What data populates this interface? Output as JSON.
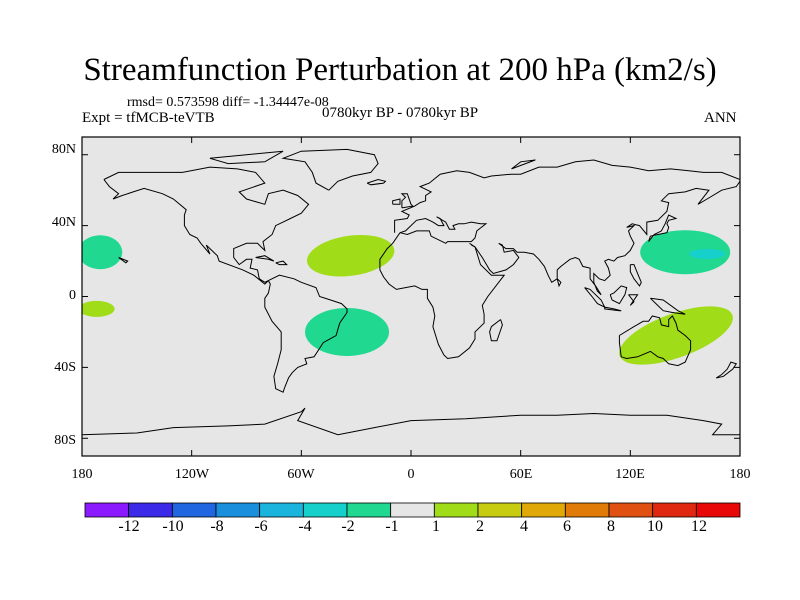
{
  "title": "Streamfunction Perturbation at 200 hPa (km2/s)",
  "stats": "rmsd= 0.573598 diff= -1.34447e-08",
  "experiment": "Expt = tfMCB-teVTB",
  "period": "0780kyr BP - 0780kyr BP",
  "season": "ANN",
  "lat_labels": [
    "80N",
    "40N",
    "0",
    "40S",
    "80S"
  ],
  "lon_labels": [
    "180",
    "120W",
    "60W",
    "0",
    "60E",
    "120E",
    "180"
  ],
  "colorbar": {
    "labels": [
      "-12",
      "-10",
      "-8",
      "-6",
      "-4",
      "-2",
      "-1",
      "1",
      "2",
      "4",
      "6",
      "8",
      "10",
      "12"
    ],
    "colors": [
      "#8c1aff",
      "#3b2be8",
      "#1f66e0",
      "#1a8fdc",
      "#1ab4dc",
      "#16d0cc",
      "#20d890",
      "#e6e6e6",
      "#a0dc18",
      "#c8cc10",
      "#e0a808",
      "#e07a08",
      "#e05010",
      "#e02810",
      "#e80808"
    ]
  },
  "chart_data": {
    "type": "map",
    "projection": "cylindrical-equidistant",
    "lon_range": [
      -180,
      180
    ],
    "lat_range": [
      -90,
      90
    ],
    "background_value_class": "-1 to 1",
    "anomalies": [
      {
        "region": "central North Pacific (west of dateline)",
        "center_lon": -170,
        "center_lat": 25,
        "class": "-2 to -1",
        "color": "#20d890"
      },
      {
        "region": "central South Pacific",
        "center_lon": -172,
        "center_lat": -7,
        "class": "1 to 2",
        "color": "#a0dc18"
      },
      {
        "region": "subtropical North Atlantic",
        "center_lon": -33,
        "center_lat": 23,
        "class": "1 to 2",
        "color": "#a0dc18"
      },
      {
        "region": "South Atlantic off Brazil",
        "center_lon": -35,
        "center_lat": -20,
        "class": "-2 to -1",
        "color": "#20d890"
      },
      {
        "region": "subtropical NW Pacific",
        "center_lon": 150,
        "center_lat": 25,
        "class": "-2 to -1",
        "color": "#20d890"
      },
      {
        "region": "NW Pacific core",
        "center_lon": 162,
        "center_lat": 24,
        "class": "-4 to -2",
        "color": "#16d0cc"
      },
      {
        "region": "Australia / SW Pacific",
        "center_lon": 145,
        "center_lat": -22,
        "class": "1 to 2",
        "color": "#a0dc18"
      }
    ]
  }
}
